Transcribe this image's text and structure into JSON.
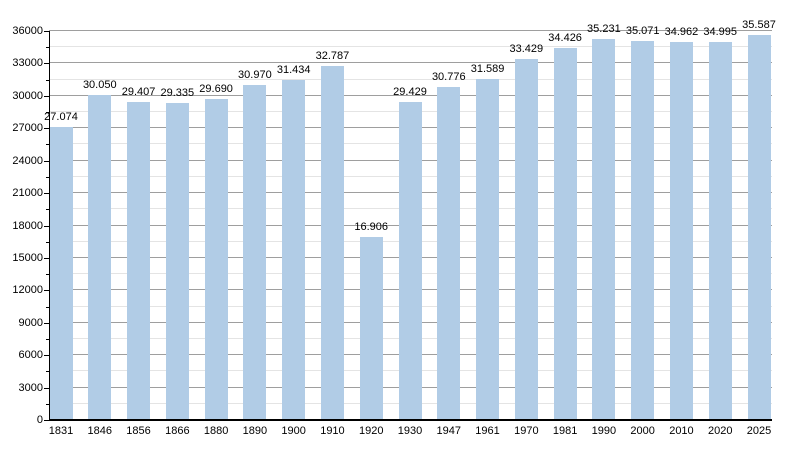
{
  "chart_data": {
    "type": "bar",
    "title": "",
    "xlabel": "",
    "ylabel": "",
    "categories": [
      "1831",
      "1846",
      "1856",
      "1866",
      "1880",
      "1890",
      "1900",
      "1910",
      "1920",
      "1930",
      "1947",
      "1961",
      "1970",
      "1981",
      "1990",
      "2000",
      "2010",
      "2020",
      "2025"
    ],
    "values": [
      27074,
      30050,
      29407,
      29335,
      29690,
      30970,
      31434,
      32787,
      16906,
      29429,
      30776,
      31589,
      33429,
      34426,
      35231,
      35071,
      34962,
      34995,
      35587
    ],
    "value_labels": [
      "27.074",
      "30.050",
      "29.407",
      "29.335",
      "29.690",
      "30.970",
      "31.434",
      "32.787",
      "16.906",
      "29.429",
      "30.776",
      "31.589",
      "33.429",
      "34.426",
      "35.231",
      "35.071",
      "34.962",
      "34.995",
      "35.587"
    ],
    "ylim": [
      0,
      36000
    ],
    "y_major_step": 3000,
    "y_minor_step": 1500,
    "y_tick_labels": [
      "0",
      "3000",
      "6000",
      "9000",
      "12000",
      "15000",
      "18000",
      "21000",
      "24000",
      "27000",
      "30000",
      "33000",
      "36000"
    ],
    "grid": "horizontal-major-and-minor",
    "legend": "none",
    "colors": {
      "bar_fill": "#b1cce6",
      "major_gridline": "#9e9e9e",
      "minor_gridline": "#e4e4e4",
      "axis": "#000000",
      "text": "#000000",
      "background": "#ffffff"
    }
  }
}
